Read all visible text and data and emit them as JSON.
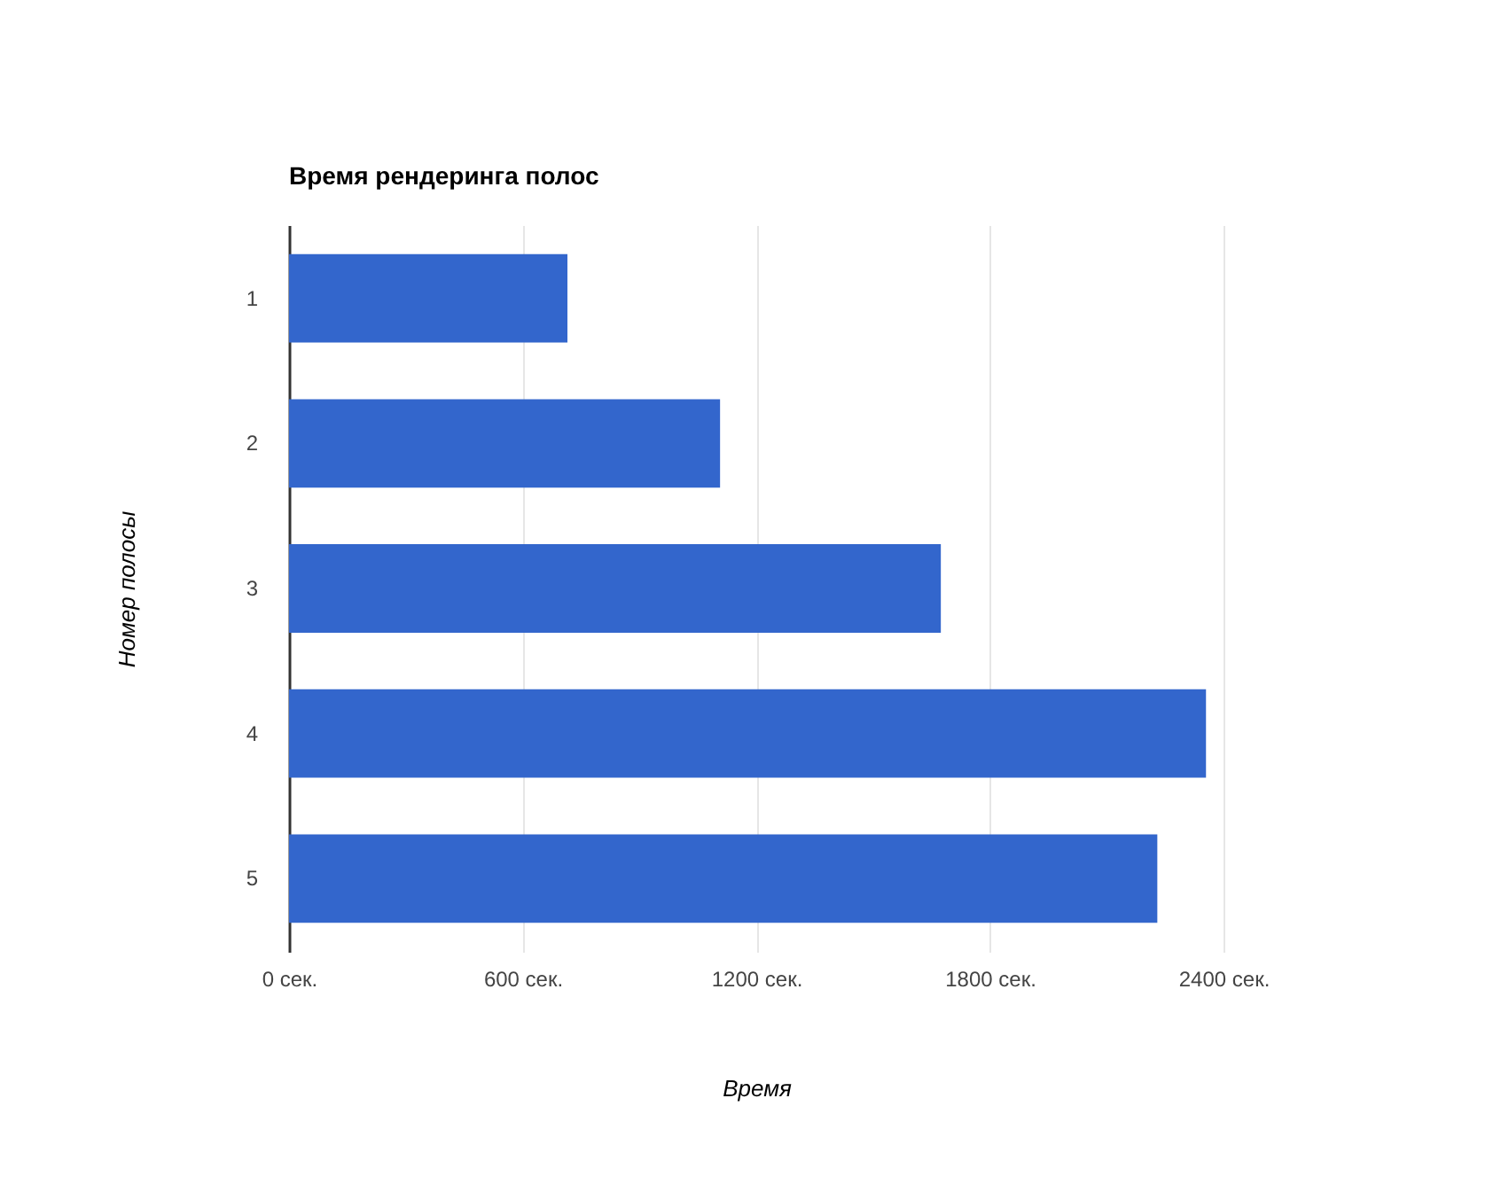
{
  "chart_data": {
    "type": "bar",
    "orientation": "horizontal",
    "title": "Время рендеринга полос",
    "xlabel": "Время",
    "ylabel": "Номер полосы",
    "categories": [
      "1",
      "2",
      "3",
      "4",
      "5"
    ],
    "values": [
      715,
      1107,
      1674,
      2355,
      2230
    ],
    "color": "#3366cc",
    "xlim": [
      0,
      2400
    ],
    "xticks": [
      {
        "value": 0,
        "label": "0 сек."
      },
      {
        "value": 600,
        "label": "600 сек."
      },
      {
        "value": 1200,
        "label": "1200 сек."
      },
      {
        "value": 1800,
        "label": "1800 сек."
      },
      {
        "value": 2400,
        "label": "2400 сек."
      }
    ],
    "grid": "x"
  }
}
